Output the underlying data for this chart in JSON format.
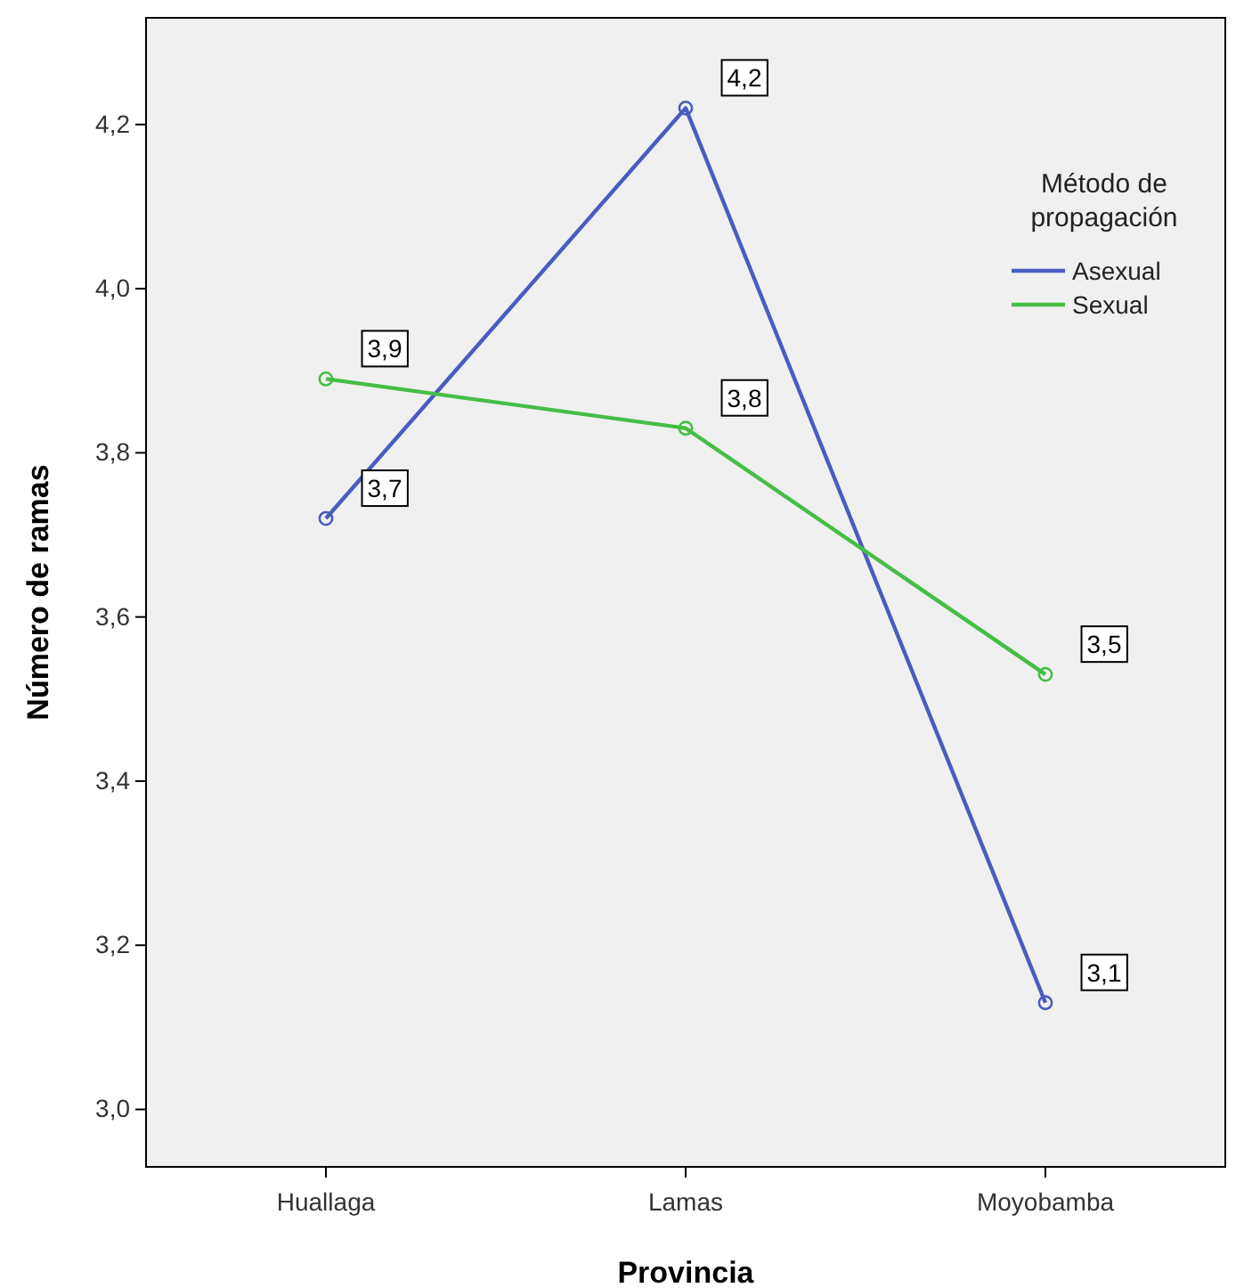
{
  "chart_data": {
    "type": "line",
    "xlabel": "Provincia",
    "ylabel": "Número de ramas",
    "legend_title": "Método de propagación",
    "categories": [
      "Huallaga",
      "Lamas",
      "Moyobamba"
    ],
    "series": [
      {
        "name": "Asexual",
        "color": "#4a5cbf",
        "values": [
          3.72,
          4.22,
          3.13
        ],
        "value_labels": [
          "3,7",
          "4,2",
          "3,1"
        ]
      },
      {
        "name": "Sexual",
        "color": "#45be45",
        "values": [
          3.89,
          3.83,
          3.53
        ],
        "value_labels": [
          "3,9",
          "3,8",
          "3,5"
        ]
      }
    ],
    "ylim": [
      2.93,
      4.33
    ],
    "yticks": [
      {
        "value": 3.0,
        "label": "3,0"
      },
      {
        "value": 3.2,
        "label": "3,2"
      },
      {
        "value": 3.4,
        "label": "3,4"
      },
      {
        "value": 3.6,
        "label": "3,6"
      },
      {
        "value": 3.8,
        "label": "3,8"
      },
      {
        "value": 4.0,
        "label": "4,0"
      },
      {
        "value": 4.2,
        "label": "4,2"
      }
    ],
    "legend": "top right",
    "marker": "circle",
    "line_style": "solid",
    "grid": false
  }
}
